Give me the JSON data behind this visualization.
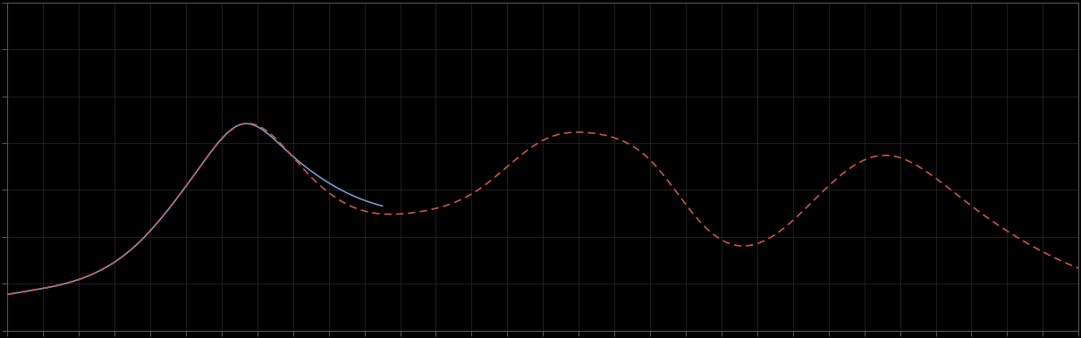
{
  "background_color": "#000000",
  "plot_bg_color": "#000000",
  "grid_color": "#2a2a2a",
  "axis_color": "#555555",
  "tick_color": "#555555",
  "figsize": [
    12.09,
    3.78
  ],
  "dpi": 100,
  "blue_line_color": "#7799cc",
  "red_line_color": "#cc5544",
  "n_xgrid": 30,
  "n_ygrid": 7
}
